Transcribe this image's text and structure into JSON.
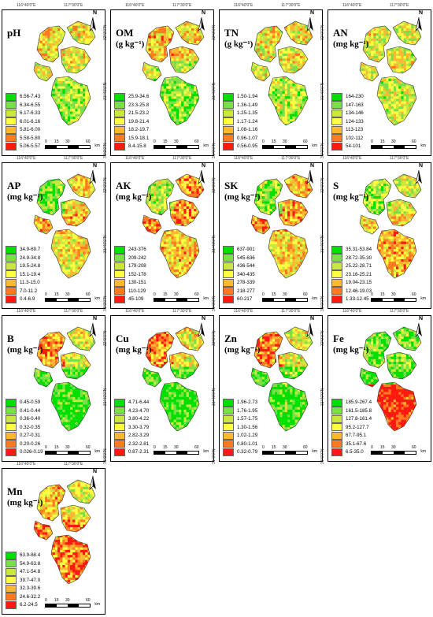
{
  "coords": {
    "top_left": "116°40'0\"E",
    "top_right": "117°30'0\"E",
    "side_top": "32°0'0\"N",
    "side_mid": "31°40'0\"N",
    "side_bottom": "31°0'0\"N"
  },
  "scale": {
    "ticks": [
      "0",
      "15",
      "30",
      "60"
    ],
    "unit": "km"
  },
  "north": "N",
  "palette": [
    "#00e000",
    "#7ae04a",
    "#c8e840",
    "#ffff40",
    "#ffb830",
    "#ff7a20",
    "#ff1a10"
  ],
  "panels": [
    {
      "title": "pH",
      "unit": "",
      "legend": [
        "6.56-7.43",
        "6.34-6.55",
        "6.17-6.33",
        "6.01-6.16",
        "5.81-6.00",
        "5.58-5.80",
        "5.06-5.57"
      ]
    },
    {
      "title": "OM",
      "unit": "(g kg⁻¹)",
      "legend": [
        "25.9-34.6",
        "23.3-25.8",
        "21.5-23.2",
        "19.8-21.4",
        "18.2-19.7",
        "15.9-18.1",
        "8.4-15.8"
      ]
    },
    {
      "title": "TN",
      "unit": "(g kg⁻¹)",
      "legend": [
        "1.50-1.94",
        "1.36-1.49",
        "1.25-1.35",
        "1.17-1.24",
        "1.08-1.16",
        "0.96-1.07",
        "0.56-0.95"
      ]
    },
    {
      "title": "AN",
      "unit": "(mg kg⁻¹)",
      "legend": [
        "164-230",
        "147-163",
        "134-146",
        "124-133",
        "113-123",
        "102-112",
        "54-101"
      ]
    },
    {
      "title": "AP",
      "unit": "(mg kg⁻¹)",
      "legend": [
        "34.9-69.7",
        "24.9-34.8",
        "19.5-24.8",
        "15.1-19.4",
        "11.3-15.0",
        "7.0-11.2",
        "0.4-6.9"
      ]
    },
    {
      "title": "AK",
      "unit": "(mg kg⁻¹)",
      "legend": [
        "243-376",
        "209-242",
        "179-208",
        "152-178",
        "130-151",
        "110-129",
        "45-109"
      ]
    },
    {
      "title": "SK",
      "unit": "(mg kg⁻¹)",
      "legend": [
        "637-901",
        "545-636",
        "436-544",
        "340-435",
        "278-339",
        "218-277",
        "60-217"
      ]
    },
    {
      "title": "S",
      "unit": "(mg kg⁻¹)",
      "legend": [
        "35.31-53.84",
        "28.72-35.30",
        "25.22-28.71",
        "23.16-25.21",
        "19.04-23.15",
        "12.46-19.03",
        "1.33-12.45"
      ]
    },
    {
      "title": "B",
      "unit": "(mg kg⁻¹)",
      "legend": [
        "0.45-0.59",
        "0.41-0.44",
        "0.36-0.40",
        "0.32-0.35",
        "0.27-0.31",
        "0.20-0.26",
        "0.026-0.19"
      ]
    },
    {
      "title": "Cu",
      "unit": "(mg kg⁻¹)",
      "legend": [
        "4.71-6.44",
        "4.23-4.70",
        "3.80-4.22",
        "3.30-3.79",
        "2.82-3.29",
        "2.32-2.81",
        "0.87-2.31"
      ]
    },
    {
      "title": "Zn",
      "unit": "(mg kg⁻¹)",
      "legend": [
        "1.96-2.73",
        "1.76-1.95",
        "1.57-1.75",
        "1.30-1.56",
        "1.02-1.29",
        "0.80-1.01",
        "0.32-0.79"
      ]
    },
    {
      "title": "Fe",
      "unit": "(mg kg⁻¹)",
      "legend": [
        "185.9-267.4",
        "161.5-185.8",
        "127.8-161.4",
        "95.2-127.7",
        "67.7-95.1",
        "35.1-67.6",
        "6.5-35.0"
      ]
    },
    {
      "title": "Mn",
      "unit": "(mg kg⁻¹)",
      "legend": [
        "63.9-88.4",
        "54.9-63.8",
        "47.1-54.8",
        "39.7-47.0",
        "32.3-39.6",
        "24.6-32.2",
        "6.2-24.5"
      ]
    }
  ],
  "map_tone": [
    [
      0.55,
      0.5,
      0.45,
      0.3
    ],
    [
      0.6,
      0.55,
      0.4,
      0.25
    ],
    [
      0.5,
      0.5,
      0.45,
      0.35
    ],
    [
      0.45,
      0.4,
      0.5,
      0.4
    ],
    [
      0.2,
      0.55,
      0.65,
      0.5
    ],
    [
      0.35,
      0.7,
      0.75,
      0.6
    ],
    [
      0.3,
      0.65,
      0.75,
      0.55
    ],
    [
      0.3,
      0.45,
      0.55,
      0.65
    ],
    [
      0.7,
      0.45,
      0.15,
      0.1
    ],
    [
      0.75,
      0.5,
      0.15,
      0.1
    ],
    [
      0.75,
      0.45,
      0.2,
      0.12
    ],
    [
      0.2,
      0.25,
      0.1,
      0.95
    ],
    [
      0.6,
      0.45,
      0.75,
      0.75
    ]
  ]
}
